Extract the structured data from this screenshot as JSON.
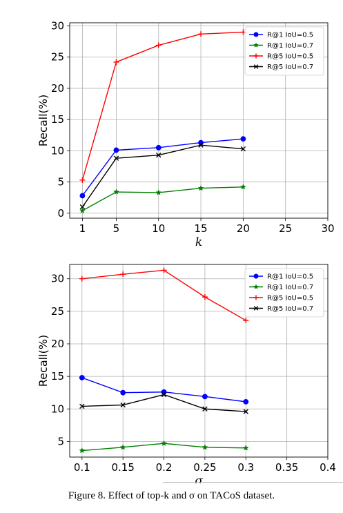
{
  "caption": "Figure 8. Effect of top-k and σ on TACoS dataset.",
  "colors": {
    "blue": "#0000ff",
    "green": "#008000",
    "red": "#ff0000",
    "black": "#000000"
  },
  "chart_data": [
    {
      "type": "line",
      "xlabel": "k",
      "ylabel": "Recall(%)",
      "xlim": [
        -0.5,
        30
      ],
      "ylim": [
        -0.8,
        30.5
      ],
      "xticks": [
        "1",
        "5",
        "10",
        "15",
        "20",
        "25",
        "30"
      ],
      "yticks": [
        "0",
        "5",
        "10",
        "15",
        "20",
        "25",
        "30"
      ],
      "grid": true,
      "legend": "top-right",
      "x": [
        1,
        5,
        10,
        15,
        20
      ],
      "series": [
        {
          "name": "R@1 IoU=0.5",
          "color": "#0000ff",
          "marker": "circle",
          "values": [
            2.8,
            10.1,
            10.5,
            11.3,
            11.9
          ]
        },
        {
          "name": "R@1 IoU=0.7",
          "color": "#008000",
          "marker": "star",
          "values": [
            0.4,
            3.4,
            3.3,
            4.0,
            4.2
          ]
        },
        {
          "name": "R@5 IoU=0.5",
          "color": "#ff0000",
          "marker": "plus",
          "values": [
            5.3,
            24.2,
            26.9,
            28.7,
            29.0
          ]
        },
        {
          "name": "R@5 IoU=0.7",
          "color": "#000000",
          "marker": "x",
          "values": [
            1.0,
            8.8,
            9.3,
            10.9,
            10.3
          ]
        }
      ]
    },
    {
      "type": "line",
      "xlabel": "σ",
      "ylabel": "Recall(%)",
      "xlim": [
        0.085,
        0.4
      ],
      "ylim": [
        2.6,
        32.2
      ],
      "xticks": [
        "0.1",
        "0.15",
        "0.2",
        "0.25",
        "0.3",
        "0.35",
        "0.4"
      ],
      "yticks": [
        "5",
        "10",
        "15",
        "20",
        "25",
        "30"
      ],
      "grid": true,
      "legend": "top-right",
      "x": [
        0.1,
        0.15,
        0.2,
        0.25,
        0.3
      ],
      "series": [
        {
          "name": "R@1 IoU=0.5",
          "color": "#0000ff",
          "marker": "circle",
          "values": [
            14.8,
            12.5,
            12.6,
            11.9,
            11.1
          ]
        },
        {
          "name": "R@1 IoU=0.7",
          "color": "#008000",
          "marker": "star",
          "values": [
            3.6,
            4.1,
            4.7,
            4.1,
            4.0
          ]
        },
        {
          "name": "R@5 IoU=0.5",
          "color": "#ff0000",
          "marker": "plus",
          "values": [
            30.0,
            30.7,
            31.3,
            27.2,
            23.6
          ]
        },
        {
          "name": "R@5 IoU=0.7",
          "color": "#000000",
          "marker": "x",
          "values": [
            10.4,
            10.6,
            12.2,
            10.0,
            9.6
          ]
        }
      ]
    }
  ]
}
